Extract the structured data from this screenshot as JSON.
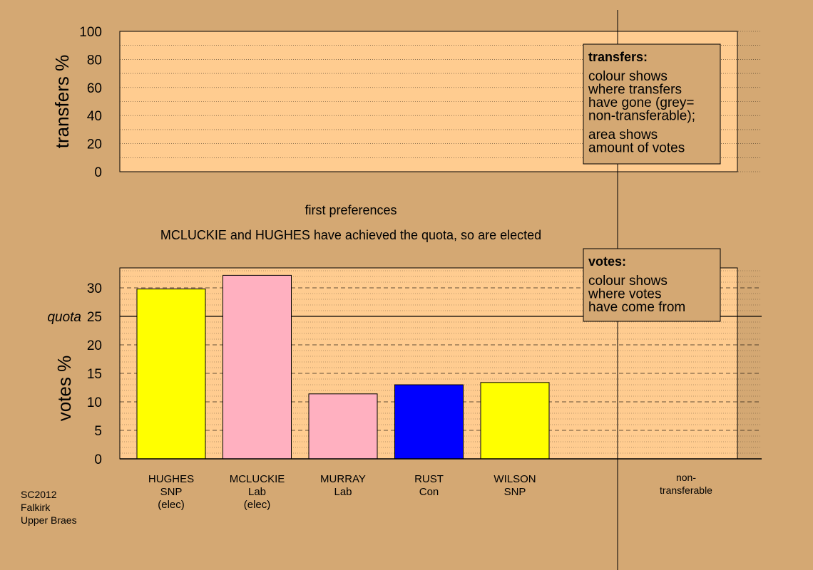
{
  "colors": {
    "background": "#d4a873",
    "panel": "#ffcc90",
    "SNP": "#ffff00",
    "Lab": "#ffb0c0",
    "Con": "#0000ff"
  },
  "transfers_legend": {
    "title": "transfers:",
    "lines": [
      "colour shows",
      "where transfers",
      "have gone (grey=",
      "non-transferable);"
    ],
    "lines2": [
      "area shows",
      "amount of votes"
    ]
  },
  "votes_legend": {
    "title": "votes:",
    "lines": [
      "colour shows",
      "where votes",
      "have come from"
    ]
  },
  "caption": {
    "stage": "first preferences",
    "message": "MCLUCKIE and HUGHES have achieved the quota, so are elected"
  },
  "footer": [
    "SC2012",
    "Falkirk",
    "Upper Braes"
  ],
  "chart_data": [
    {
      "type": "bar",
      "ylabel": "transfers %",
      "ylim": [
        0,
        100
      ],
      "yticks": [
        0,
        20,
        40,
        60,
        80,
        100
      ],
      "values": []
    },
    {
      "type": "bar",
      "ylabel": "votes %",
      "ylim": [
        0,
        33.5
      ],
      "yticks": [
        0,
        5,
        10,
        15,
        20,
        25,
        30
      ],
      "quota": {
        "label": "quota",
        "value": 25
      },
      "categories": [
        {
          "lines": [
            "HUGHES",
            "SNP",
            "(elec)"
          ],
          "party": "SNP",
          "value": 29.8
        },
        {
          "lines": [
            "MCLUCKIE",
            "Lab",
            "(elec)"
          ],
          "party": "Lab",
          "value": 32.2
        },
        {
          "lines": [
            "MURRAY",
            "Lab"
          ],
          "party": "Lab",
          "value": 11.4
        },
        {
          "lines": [
            "RUST",
            "Con"
          ],
          "party": "Con",
          "value": 13.0
        },
        {
          "lines": [
            "WILSON",
            "SNP"
          ],
          "party": "SNP",
          "value": 13.4
        }
      ],
      "nontransferable_label": [
        "non-",
        "transferable"
      ]
    }
  ]
}
